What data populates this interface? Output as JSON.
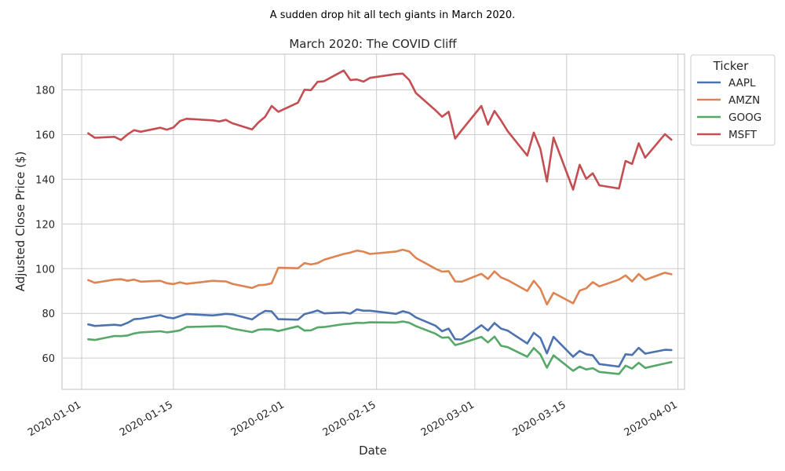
{
  "chart_data": {
    "type": "line",
    "suptitle": "A sudden drop hit all tech giants in March 2020.",
    "title": "March 2020: The COVID Cliff",
    "xlabel": "Date",
    "ylabel": "Adjusted Close Price ($)",
    "x_range": [
      "2019-12-29",
      "2020-04-02"
    ],
    "ylim": [
      46,
      196
    ],
    "x_ticks": [
      "2020-01-01",
      "2020-01-15",
      "2020-02-01",
      "2020-02-15",
      "2020-03-01",
      "2020-03-15",
      "2020-04-01"
    ],
    "y_ticks": [
      60,
      80,
      100,
      120,
      140,
      160,
      180
    ],
    "grid": true,
    "legend": {
      "title": "Ticker",
      "placement": "outside-right"
    },
    "x": [
      "2020-01-02",
      "2020-01-03",
      "2020-01-06",
      "2020-01-07",
      "2020-01-08",
      "2020-01-09",
      "2020-01-10",
      "2020-01-13",
      "2020-01-14",
      "2020-01-15",
      "2020-01-16",
      "2020-01-17",
      "2020-01-21",
      "2020-01-22",
      "2020-01-23",
      "2020-01-24",
      "2020-01-27",
      "2020-01-28",
      "2020-01-29",
      "2020-01-30",
      "2020-01-31",
      "2020-02-03",
      "2020-02-04",
      "2020-02-05",
      "2020-02-06",
      "2020-02-07",
      "2020-02-10",
      "2020-02-11",
      "2020-02-12",
      "2020-02-13",
      "2020-02-14",
      "2020-02-18",
      "2020-02-19",
      "2020-02-20",
      "2020-02-21",
      "2020-02-24",
      "2020-02-25",
      "2020-02-26",
      "2020-02-27",
      "2020-02-28",
      "2020-03-02",
      "2020-03-03",
      "2020-03-04",
      "2020-03-05",
      "2020-03-06",
      "2020-03-09",
      "2020-03-10",
      "2020-03-11",
      "2020-03-12",
      "2020-03-13",
      "2020-03-16",
      "2020-03-17",
      "2020-03-18",
      "2020-03-19",
      "2020-03-20",
      "2020-03-23",
      "2020-03-24",
      "2020-03-25",
      "2020-03-26",
      "2020-03-27",
      "2020-03-30",
      "2020-03-31"
    ],
    "series": [
      {
        "name": "AAPL",
        "color": "#4c72b0",
        "values": [
          75.1,
          74.4,
          74.9,
          74.6,
          75.8,
          77.4,
          77.6,
          79.2,
          78.2,
          77.8,
          78.8,
          79.7,
          79.1,
          79.4,
          79.8,
          79.6,
          77.3,
          79.4,
          81.1,
          80.9,
          77.4,
          77.2,
          79.7,
          80.4,
          81.3,
          80.0,
          80.4,
          79.9,
          81.8,
          81.2,
          81.2,
          79.8,
          81.0,
          80.2,
          78.2,
          74.5,
          72.0,
          73.2,
          68.4,
          68.3,
          74.7,
          72.3,
          75.7,
          73.2,
          72.3,
          66.5,
          71.3,
          69.0,
          62.1,
          69.5,
          60.6,
          63.2,
          61.7,
          61.2,
          57.3,
          56.2,
          61.7,
          61.4,
          64.6,
          62.0,
          63.7,
          63.6
        ]
      },
      {
        "name": "AMZN",
        "color": "#dd8452",
        "values": [
          94.9,
          93.7,
          95.1,
          95.3,
          94.6,
          95.1,
          94.2,
          94.6,
          93.5,
          93.1,
          93.9,
          93.2,
          94.6,
          94.4,
          94.3,
          93.2,
          91.4,
          92.6,
          92.8,
          93.5,
          100.4,
          100.2,
          102.5,
          101.9,
          102.5,
          104.0,
          106.6,
          107.2,
          108.1,
          107.6,
          106.6,
          107.7,
          108.5,
          107.7,
          104.8,
          100.0,
          98.7,
          98.9,
          94.3,
          94.2,
          97.7,
          95.4,
          98.8,
          96.1,
          94.9,
          90.0,
          94.6,
          91.0,
          84.0,
          89.2,
          84.5,
          90.2,
          91.2,
          94.0,
          92.1,
          95.1,
          97.0,
          94.3,
          97.6,
          95.0,
          98.2,
          97.5
        ]
      },
      {
        "name": "GOOG",
        "color": "#55a868",
        "values": [
          68.4,
          68.1,
          69.9,
          69.8,
          70.1,
          71.0,
          71.5,
          72.0,
          71.5,
          71.9,
          72.4,
          73.9,
          74.2,
          74.3,
          74.1,
          73.2,
          71.6,
          72.7,
          72.9,
          72.8,
          72.1,
          74.2,
          72.3,
          72.4,
          73.7,
          73.9,
          75.2,
          75.4,
          75.8,
          75.7,
          76.0,
          75.9,
          76.4,
          75.8,
          74.3,
          70.9,
          69.1,
          69.3,
          65.8,
          66.6,
          69.5,
          67.0,
          69.6,
          65.5,
          64.9,
          60.6,
          64.5,
          61.6,
          55.7,
          61.2,
          54.3,
          56.2,
          54.9,
          55.5,
          53.8,
          52.9,
          56.6,
          55.3,
          57.9,
          55.6,
          57.6,
          58.2
        ]
      },
      {
        "name": "MSFT",
        "color": "#c44e52",
        "values": [
          160.6,
          158.6,
          159.0,
          157.6,
          160.1,
          162.0,
          161.3,
          163.1,
          162.2,
          163.2,
          166.1,
          167.1,
          166.4,
          165.9,
          166.6,
          165.1,
          162.3,
          165.5,
          168.0,
          172.8,
          170.2,
          174.3,
          180.1,
          179.9,
          183.6,
          183.9,
          188.7,
          184.4,
          184.7,
          183.7,
          185.4,
          187.1,
          187.3,
          184.4,
          178.6,
          170.9,
          168.0,
          170.2,
          158.2,
          162.0,
          172.8,
          164.5,
          170.6,
          166.3,
          161.6,
          150.6,
          160.9,
          153.6,
          139.0,
          158.7,
          135.4,
          146.5,
          140.2,
          142.7,
          137.3,
          135.9,
          148.2,
          146.9,
          156.1,
          149.7,
          160.2,
          157.7
        ]
      }
    ]
  }
}
